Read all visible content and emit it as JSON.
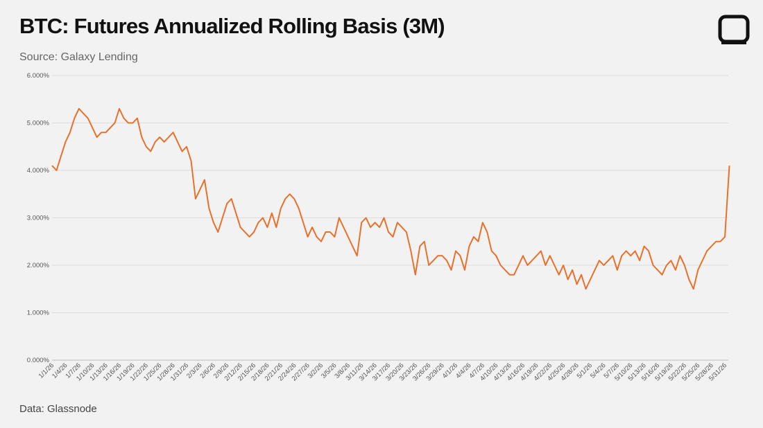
{
  "chart_data": {
    "type": "line",
    "title": "BTC: Futures Annualized Rolling Basis (3M)",
    "subtitle": "Source: Galaxy Lending",
    "footnote": "Data: Glassnode",
    "categories": [
      "1/1/26",
      null,
      null,
      "1/4/26",
      null,
      null,
      "1/7/26",
      null,
      null,
      "1/10/26",
      null,
      null,
      "1/13/26",
      null,
      null,
      "1/16/26",
      null,
      null,
      "1/19/26",
      null,
      null,
      "1/22/26",
      null,
      null,
      "1/25/26",
      null,
      null,
      "1/28/26",
      null,
      null,
      "1/31/26",
      null,
      null,
      "2/3/26",
      null,
      null,
      "2/6/26",
      null,
      null,
      "2/9/26",
      null,
      null,
      "2/12/26",
      null,
      null,
      "2/15/26",
      null,
      null,
      "2/18/26",
      null,
      null,
      "2/21/26",
      null,
      null,
      "2/24/26",
      null,
      null,
      "2/27/26",
      null,
      null,
      "3/2/26",
      null,
      null,
      "3/5/26",
      null,
      null,
      "3/8/26",
      null,
      null,
      "3/11/26",
      null,
      null,
      "3/14/26",
      null,
      null,
      "3/17/26",
      null,
      null,
      "3/20/26",
      null,
      null,
      "3/23/26",
      null,
      null,
      "3/26/26",
      null,
      null,
      "3/29/26",
      null,
      null,
      "4/1/26",
      null,
      null,
      "4/4/26",
      null,
      null,
      "4/7/26",
      null,
      null,
      "4/10/26",
      null,
      null,
      "4/13/26",
      null,
      null,
      "4/16/26",
      null,
      null,
      "4/19/26",
      null,
      null,
      "4/22/26",
      null,
      null,
      "4/25/26",
      null,
      null,
      "4/28/26",
      null,
      null,
      "5/1/26",
      null,
      null,
      "5/4/26",
      null,
      null,
      "5/7/26",
      null,
      null,
      "5/10/26",
      null,
      null,
      "5/13/26",
      null,
      null,
      "5/16/26",
      null,
      null,
      "5/19/26",
      null,
      null,
      "5/22/26",
      null,
      null,
      "5/25/26",
      null,
      null,
      "5/28/26",
      null,
      null,
      "5/31/26",
      null
    ],
    "values": [
      4.1,
      4.0,
      4.3,
      4.6,
      4.8,
      5.1,
      5.3,
      5.2,
      5.1,
      4.9,
      4.7,
      4.8,
      4.8,
      4.9,
      5.0,
      5.3,
      5.1,
      5.0,
      5.0,
      5.1,
      4.7,
      4.5,
      4.4,
      4.6,
      4.7,
      4.6,
      4.7,
      4.8,
      4.6,
      4.4,
      4.5,
      4.2,
      3.4,
      3.6,
      3.8,
      3.2,
      2.9,
      2.7,
      3.0,
      3.3,
      3.4,
      3.1,
      2.8,
      2.7,
      2.6,
      2.7,
      2.9,
      3.0,
      2.8,
      3.1,
      2.8,
      3.2,
      3.4,
      3.5,
      3.4,
      3.2,
      2.9,
      2.6,
      2.8,
      2.6,
      2.5,
      2.7,
      2.7,
      2.6,
      3.0,
      2.8,
      2.6,
      2.4,
      2.2,
      2.9,
      3.0,
      2.8,
      2.9,
      2.8,
      3.0,
      2.7,
      2.6,
      2.9,
      2.8,
      2.7,
      2.3,
      1.8,
      2.4,
      2.5,
      2.0,
      2.1,
      2.2,
      2.2,
      2.1,
      1.9,
      2.3,
      2.2,
      1.9,
      2.4,
      2.6,
      2.5,
      2.9,
      2.7,
      2.3,
      2.2,
      2.0,
      1.9,
      1.8,
      1.8,
      2.0,
      2.2,
      2.0,
      2.1,
      2.2,
      2.3,
      2.0,
      2.2,
      2.0,
      1.8,
      2.0,
      1.7,
      1.9,
      1.6,
      1.8,
      1.5,
      1.7,
      1.9,
      2.1,
      2.0,
      2.1,
      2.2,
      1.9,
      2.2,
      2.3,
      2.2,
      2.3,
      2.1,
      2.4,
      2.3,
      2.0,
      1.9,
      1.8,
      2.0,
      2.1,
      1.9,
      2.2,
      2.0,
      1.7,
      1.5,
      1.9,
      2.1,
      2.3,
      2.4,
      2.5,
      2.5,
      2.6,
      4.1
    ],
    "color": "#e8702a",
    "ylim": [
      0,
      6
    ],
    "yticks": [
      {
        "value": 0,
        "label": "0.000%"
      },
      {
        "value": 1,
        "label": "1.000%"
      },
      {
        "value": 2,
        "label": "2.000%"
      },
      {
        "value": 3,
        "label": "3.000%"
      },
      {
        "value": 4,
        "label": "4.000%"
      },
      {
        "value": 5,
        "label": "5.000%"
      },
      {
        "value": 6,
        "label": "6.000%"
      }
    ],
    "grid": true
  }
}
